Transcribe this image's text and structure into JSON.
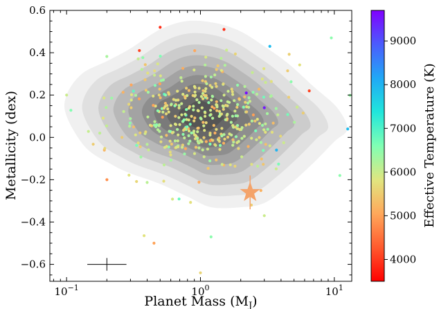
{
  "chart_data": {
    "type": "scatter",
    "xlabel": "Planet Mass (M",
    "xlabel_sub": "J",
    "xlabel_close": ")",
    "ylabel": "Metallicity (dex)",
    "xscale": "log",
    "xlim": [
      0.075,
      13.5
    ],
    "ylim": [
      -0.68,
      0.6
    ],
    "x_ticks": [
      {
        "value": 0.1,
        "base": "10",
        "exp": "−1"
      },
      {
        "value": 1,
        "base": "10",
        "exp": "0"
      },
      {
        "value": 10,
        "base": "10",
        "exp": "1"
      }
    ],
    "y_ticks": [
      {
        "value": 0.6,
        "label": "0.6"
      },
      {
        "value": 0.4,
        "label": "0.4"
      },
      {
        "value": 0.2,
        "label": "0.2"
      },
      {
        "value": 0.0,
        "label": "0.0"
      },
      {
        "value": -0.2,
        "label": "−0.2"
      },
      {
        "value": -0.4,
        "label": "−0.4"
      },
      {
        "value": -0.6,
        "label": "−0.6"
      }
    ],
    "colorbar": {
      "label": "Effective Temperature (K)",
      "range": [
        3500,
        9700
      ],
      "ticks": [
        {
          "value": 4000,
          "label": "4000"
        },
        {
          "value": 5000,
          "label": "5000"
        },
        {
          "value": 6000,
          "label": "6000"
        },
        {
          "value": 7000,
          "label": "7000"
        },
        {
          "value": 8000,
          "label": "8000"
        },
        {
          "value": 9000,
          "label": "9000"
        }
      ],
      "colormap": "rainbow"
    },
    "density_contours": {
      "center_mass": 1.0,
      "center_metallicity": 0.1,
      "level_colors": [
        "#f0f0f0",
        "#e0e0e0",
        "#cccccc",
        "#b8b8b8",
        "#a3a3a3",
        "#8e8e8e",
        "#7a7a7a",
        "#676767",
        "#555555"
      ],
      "scales": [
        1.0,
        0.87,
        0.75,
        0.64,
        0.53,
        0.43,
        0.34,
        0.25,
        0.16
      ],
      "envelope": [
        [
          0.1,
          0.2
        ],
        [
          0.1,
          0.1
        ],
        [
          0.14,
          -0.05
        ],
        [
          0.22,
          -0.13
        ],
        [
          0.3,
          -0.17
        ],
        [
          0.5,
          -0.22
        ],
        [
          0.8,
          -0.28
        ],
        [
          1.2,
          -0.33
        ],
        [
          2.0,
          -0.33
        ],
        [
          3.0,
          -0.31
        ],
        [
          4.5,
          -0.23
        ],
        [
          7.0,
          -0.12
        ],
        [
          10.0,
          -0.02
        ],
        [
          12.5,
          0.04
        ],
        [
          10.5,
          0.14
        ],
        [
          7.0,
          0.24
        ],
        [
          4.5,
          0.35
        ],
        [
          3.0,
          0.43
        ],
        [
          2.0,
          0.5
        ],
        [
          1.3,
          0.54
        ],
        [
          0.8,
          0.55
        ],
        [
          0.5,
          0.51
        ],
        [
          0.3,
          0.42
        ],
        [
          0.2,
          0.36
        ],
        [
          0.13,
          0.3
        ]
      ]
    },
    "scatter_count": 430,
    "scatter_seed": 7,
    "scatter_outliers": [
      {
        "x": 0.5,
        "y": 0.52,
        "t": 3900
      },
      {
        "x": 1.5,
        "y": 0.51,
        "t": 3900
      },
      {
        "x": 0.35,
        "y": 0.41,
        "t": 4100
      },
      {
        "x": 9.5,
        "y": 0.47,
        "t": 6500
      },
      {
        "x": 3.3,
        "y": 0.43,
        "t": 7900
      },
      {
        "x": 12.6,
        "y": 0.04,
        "t": 7900
      },
      {
        "x": 2.4,
        "y": -0.32,
        "t": 5500
      },
      {
        "x": 3.0,
        "y": -0.37,
        "t": 6000
      },
      {
        "x": 0.2,
        "y": -0.2,
        "t": 4800
      },
      {
        "x": 0.45,
        "y": -0.5,
        "t": 5000
      },
      {
        "x": 1.0,
        "y": -0.64,
        "t": 5600
      },
      {
        "x": 1.2,
        "y": -0.47,
        "t": 6500
      },
      {
        "x": 11.0,
        "y": -0.18,
        "t": 6500
      },
      {
        "x": 0.1,
        "y": 0.2,
        "t": 6000
      },
      {
        "x": 2.2,
        "y": 0.21,
        "t": 9600
      },
      {
        "x": 3.0,
        "y": 0.14,
        "t": 9500
      },
      {
        "x": 3.7,
        "y": -0.06,
        "t": 8000
      },
      {
        "x": 6.5,
        "y": 0.22,
        "t": 4100
      }
    ],
    "highlight": {
      "x": 2.35,
      "y": -0.26,
      "yerr": 0.08,
      "xerr_low": 0.05,
      "xerr_high": 0.05,
      "color": "#f4a36a",
      "marker": "star"
    },
    "typical_error_bar": {
      "x": 0.2,
      "y": -0.6,
      "x_factor": 1.4,
      "yerr": 0.03
    },
    "grid": false
  }
}
